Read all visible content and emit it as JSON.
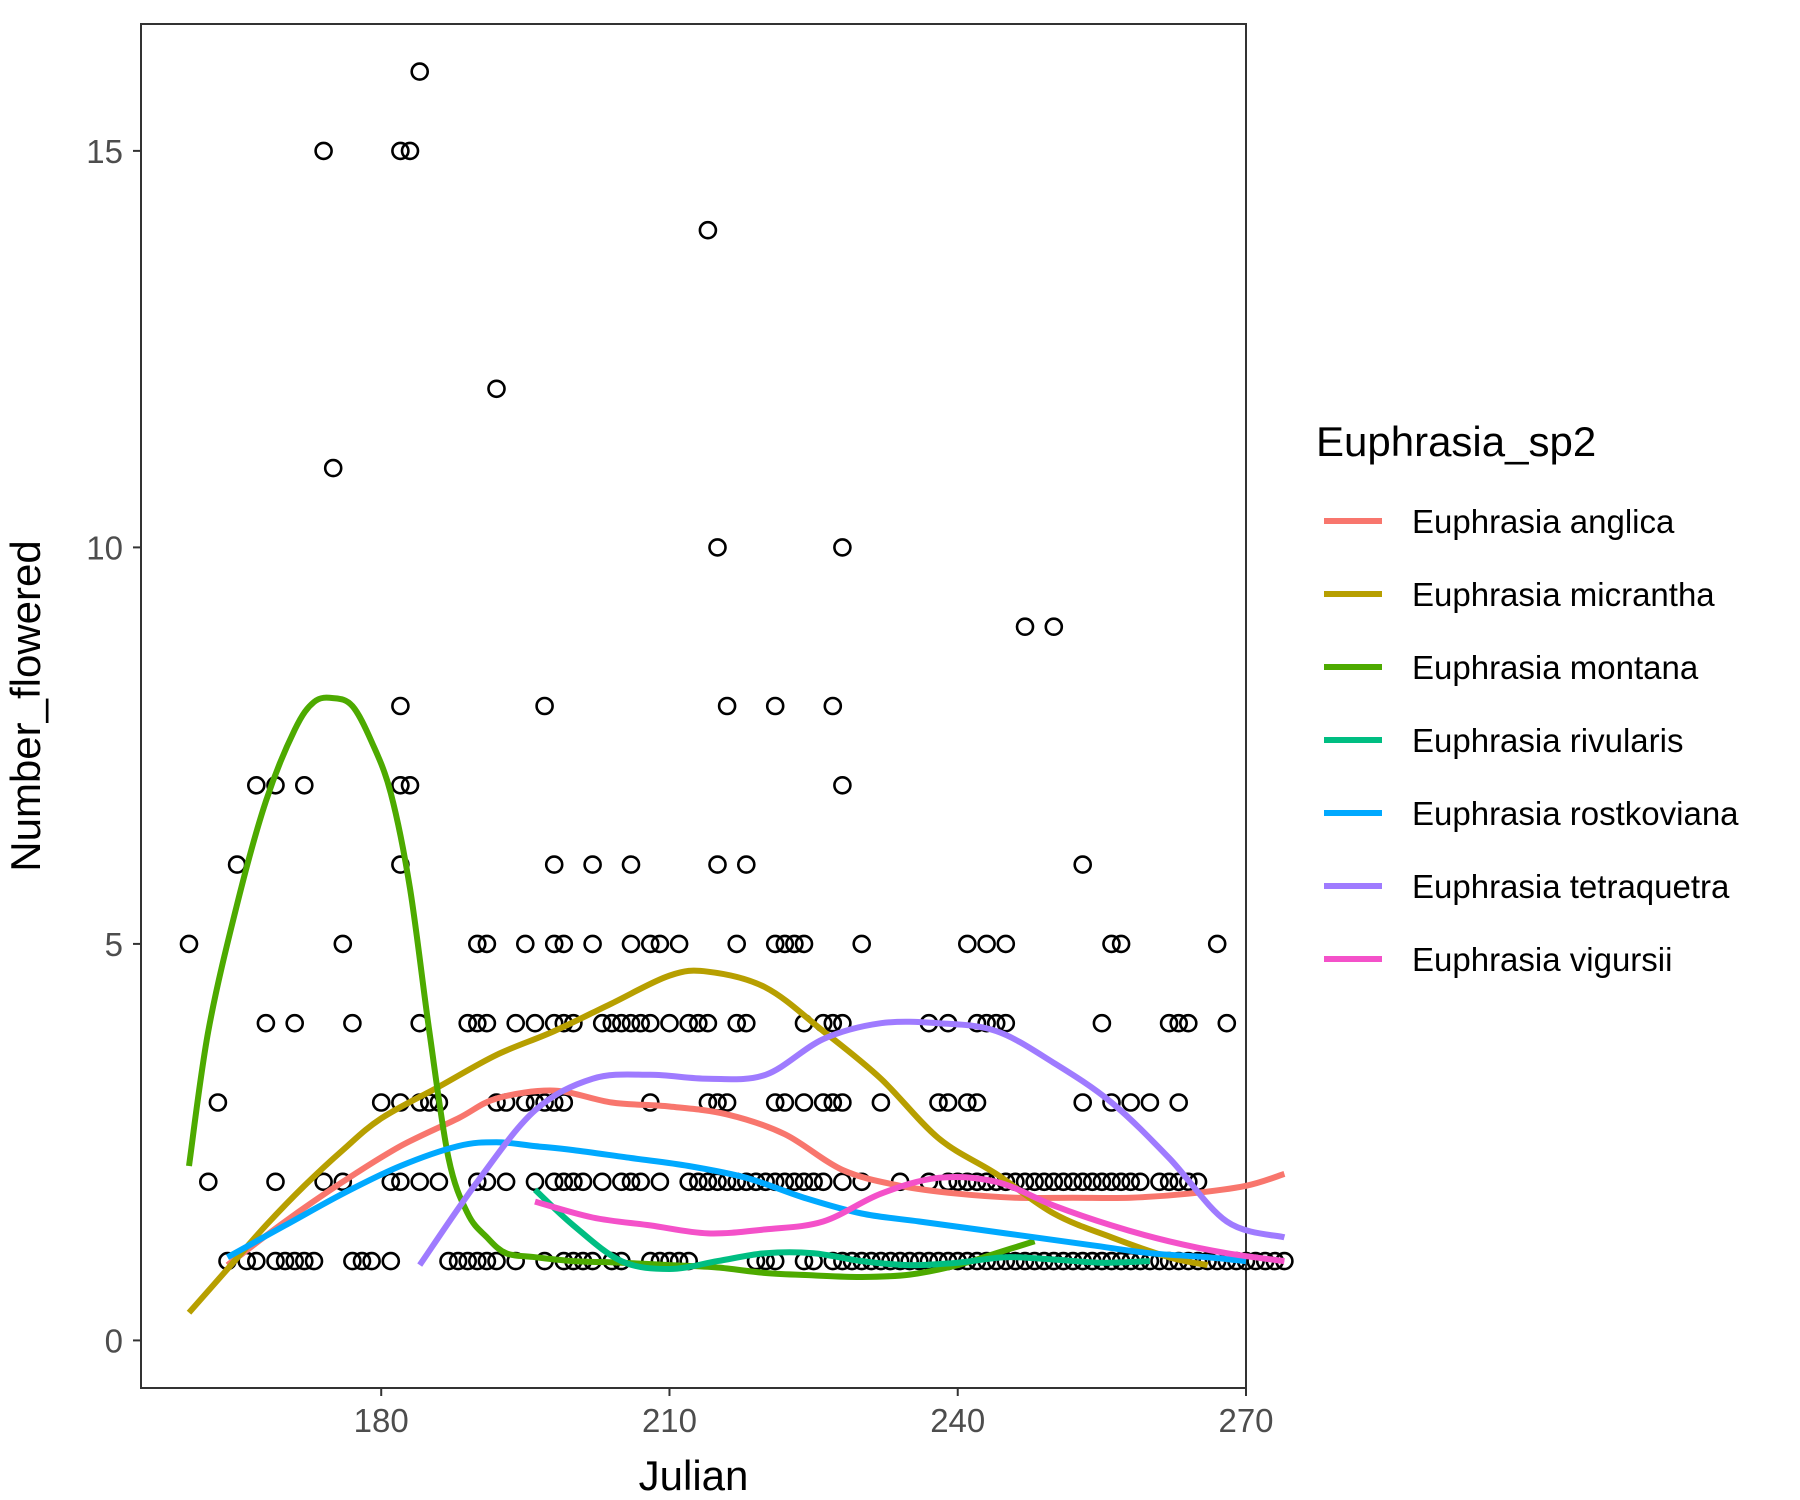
{
  "chart_data": {
    "type": "scatter",
    "title": "",
    "xlabel": "Julian",
    "ylabel": "Number_flowered",
    "xlim": [
      155,
      270
    ],
    "ylim": [
      -0.6,
      16.6
    ],
    "x_ticks": [
      180,
      210,
      240,
      270
    ],
    "y_ticks": [
      0,
      5,
      10,
      15
    ],
    "grid": false,
    "point_style": "open-circle",
    "point_color": "#000000",
    "legend": {
      "title": "Euphrasia_sp2",
      "position": "right"
    },
    "points": [
      [
        160,
        5
      ],
      [
        162,
        2
      ],
      [
        163,
        3
      ],
      [
        164,
        1
      ],
      [
        165,
        6
      ],
      [
        166,
        1
      ],
      [
        167,
        7
      ],
      [
        167,
        1
      ],
      [
        168,
        4
      ],
      [
        169,
        7
      ],
      [
        169,
        2
      ],
      [
        169,
        1
      ],
      [
        170,
        1
      ],
      [
        171,
        4
      ],
      [
        171,
        1
      ],
      [
        172,
        7
      ],
      [
        172,
        1
      ],
      [
        173,
        1
      ],
      [
        174,
        15
      ],
      [
        174,
        2
      ],
      [
        175,
        11
      ],
      [
        176,
        5
      ],
      [
        176,
        2
      ],
      [
        177,
        4
      ],
      [
        177,
        1
      ],
      [
        178,
        1
      ],
      [
        179,
        1
      ],
      [
        180,
        3
      ],
      [
        181,
        2
      ],
      [
        181,
        1
      ],
      [
        182,
        15
      ],
      [
        182,
        8
      ],
      [
        182,
        7
      ],
      [
        182,
        6
      ],
      [
        182,
        3
      ],
      [
        182,
        2
      ],
      [
        183,
        15
      ],
      [
        183,
        7
      ],
      [
        184,
        16
      ],
      [
        184,
        4
      ],
      [
        184,
        3
      ],
      [
        184,
        2
      ],
      [
        185,
        3
      ],
      [
        186,
        3
      ],
      [
        186,
        2
      ],
      [
        187,
        1
      ],
      [
        188,
        1
      ],
      [
        189,
        4
      ],
      [
        189,
        1
      ],
      [
        190,
        5
      ],
      [
        190,
        4
      ],
      [
        190,
        2
      ],
      [
        190,
        1
      ],
      [
        191,
        5
      ],
      [
        191,
        4
      ],
      [
        191,
        2
      ],
      [
        191,
        1
      ],
      [
        192,
        12
      ],
      [
        192,
        3
      ],
      [
        192,
        1
      ],
      [
        193,
        3
      ],
      [
        193,
        2
      ],
      [
        194,
        4
      ],
      [
        194,
        1
      ],
      [
        195,
        5
      ],
      [
        195,
        3
      ],
      [
        196,
        4
      ],
      [
        196,
        3
      ],
      [
        196,
        2
      ],
      [
        197,
        8
      ],
      [
        197,
        3
      ],
      [
        197,
        1
      ],
      [
        198,
        6
      ],
      [
        198,
        5
      ],
      [
        198,
        4
      ],
      [
        198,
        3
      ],
      [
        198,
        2
      ],
      [
        199,
        5
      ],
      [
        199,
        4
      ],
      [
        199,
        3
      ],
      [
        199,
        2
      ],
      [
        199,
        1
      ],
      [
        200,
        4
      ],
      [
        200,
        2
      ],
      [
        200,
        1
      ],
      [
        201,
        2
      ],
      [
        201,
        1
      ],
      [
        202,
        6
      ],
      [
        202,
        5
      ],
      [
        202,
        1
      ],
      [
        203,
        4
      ],
      [
        203,
        2
      ],
      [
        204,
        4
      ],
      [
        204,
        1
      ],
      [
        205,
        4
      ],
      [
        205,
        2
      ],
      [
        205,
        1
      ],
      [
        206,
        6
      ],
      [
        206,
        5
      ],
      [
        206,
        4
      ],
      [
        206,
        2
      ],
      [
        207,
        4
      ],
      [
        207,
        2
      ],
      [
        208,
        5
      ],
      [
        208,
        4
      ],
      [
        208,
        3
      ],
      [
        208,
        1
      ],
      [
        209,
        5
      ],
      [
        209,
        2
      ],
      [
        209,
        1
      ],
      [
        210,
        4
      ],
      [
        210,
        1
      ],
      [
        211,
        5
      ],
      [
        211,
        1
      ],
      [
        212,
        4
      ],
      [
        212,
        2
      ],
      [
        212,
        1
      ],
      [
        213,
        4
      ],
      [
        213,
        2
      ],
      [
        214,
        14
      ],
      [
        214,
        4
      ],
      [
        214,
        3
      ],
      [
        214,
        2
      ],
      [
        215,
        10
      ],
      [
        215,
        6
      ],
      [
        215,
        3
      ],
      [
        215,
        2
      ],
      [
        216,
        8
      ],
      [
        216,
        3
      ],
      [
        216,
        2
      ],
      [
        217,
        5
      ],
      [
        217,
        4
      ],
      [
        217,
        2
      ],
      [
        218,
        6
      ],
      [
        218,
        4
      ],
      [
        218,
        2
      ],
      [
        219,
        2
      ],
      [
        219,
        1
      ],
      [
        220,
        2
      ],
      [
        220,
        1
      ],
      [
        221,
        8
      ],
      [
        221,
        5
      ],
      [
        221,
        3
      ],
      [
        221,
        2
      ],
      [
        221,
        1
      ],
      [
        222,
        5
      ],
      [
        222,
        3
      ],
      [
        222,
        2
      ],
      [
        223,
        5
      ],
      [
        223,
        2
      ],
      [
        224,
        5
      ],
      [
        224,
        4
      ],
      [
        224,
        3
      ],
      [
        224,
        2
      ],
      [
        224,
        1
      ],
      [
        225,
        2
      ],
      [
        225,
        1
      ],
      [
        226,
        4
      ],
      [
        226,
        3
      ],
      [
        226,
        2
      ],
      [
        227,
        8
      ],
      [
        227,
        4
      ],
      [
        227,
        3
      ],
      [
        227,
        1
      ],
      [
        228,
        10
      ],
      [
        228,
        7
      ],
      [
        228,
        4
      ],
      [
        228,
        3
      ],
      [
        228,
        2
      ],
      [
        228,
        1
      ],
      [
        229,
        1
      ],
      [
        230,
        5
      ],
      [
        230,
        2
      ],
      [
        230,
        1
      ],
      [
        231,
        1
      ],
      [
        232,
        3
      ],
      [
        232,
        1
      ],
      [
        233,
        1
      ],
      [
        234,
        2
      ],
      [
        234,
        1
      ],
      [
        235,
        1
      ],
      [
        236,
        1
      ],
      [
        237,
        4
      ],
      [
        237,
        2
      ],
      [
        237,
        1
      ],
      [
        238,
        3
      ],
      [
        238,
        1
      ],
      [
        239,
        4
      ],
      [
        239,
        3
      ],
      [
        239,
        2
      ],
      [
        239,
        1
      ],
      [
        240,
        2
      ],
      [
        240,
        1
      ],
      [
        241,
        5
      ],
      [
        241,
        3
      ],
      [
        241,
        2
      ],
      [
        241,
        1
      ],
      [
        242,
        4
      ],
      [
        242,
        3
      ],
      [
        242,
        2
      ],
      [
        242,
        1
      ],
      [
        243,
        5
      ],
      [
        243,
        4
      ],
      [
        243,
        2
      ],
      [
        243,
        1
      ],
      [
        244,
        4
      ],
      [
        244,
        2
      ],
      [
        244,
        1
      ],
      [
        245,
        5
      ],
      [
        245,
        4
      ],
      [
        245,
        2
      ],
      [
        245,
        1
      ],
      [
        246,
        2
      ],
      [
        246,
        1
      ],
      [
        247,
        9
      ],
      [
        247,
        2
      ],
      [
        247,
        1
      ],
      [
        248,
        2
      ],
      [
        248,
        1
      ],
      [
        249,
        2
      ],
      [
        249,
        1
      ],
      [
        250,
        9
      ],
      [
        250,
        2
      ],
      [
        250,
        1
      ],
      [
        251,
        2
      ],
      [
        251,
        1
      ],
      [
        252,
        2
      ],
      [
        252,
        1
      ],
      [
        253,
        6
      ],
      [
        253,
        3
      ],
      [
        253,
        2
      ],
      [
        253,
        1
      ],
      [
        254,
        2
      ],
      [
        254,
        1
      ],
      [
        255,
        4
      ],
      [
        255,
        2
      ],
      [
        255,
        1
      ],
      [
        256,
        5
      ],
      [
        256,
        3
      ],
      [
        256,
        2
      ],
      [
        256,
        1
      ],
      [
        257,
        5
      ],
      [
        257,
        2
      ],
      [
        257,
        1
      ],
      [
        258,
        3
      ],
      [
        258,
        2
      ],
      [
        258,
        1
      ],
      [
        259,
        2
      ],
      [
        259,
        1
      ],
      [
        260,
        3
      ],
      [
        260,
        1
      ],
      [
        261,
        2
      ],
      [
        261,
        1
      ],
      [
        262,
        4
      ],
      [
        262,
        2
      ],
      [
        262,
        1
      ],
      [
        263,
        4
      ],
      [
        263,
        3
      ],
      [
        263,
        2
      ],
      [
        263,
        1
      ],
      [
        264,
        4
      ],
      [
        264,
        2
      ],
      [
        264,
        1
      ],
      [
        265,
        2
      ],
      [
        265,
        1
      ],
      [
        266,
        1
      ],
      [
        267,
        5
      ],
      [
        267,
        1
      ],
      [
        268,
        4
      ],
      [
        268,
        1
      ],
      [
        269,
        1
      ],
      [
        270,
        1
      ],
      [
        271,
        1
      ],
      [
        272,
        1
      ],
      [
        273,
        1
      ],
      [
        274,
        1
      ]
    ],
    "series": [
      {
        "name": "Euphrasia anglica",
        "color": "#F8766D",
        "x": [
          164,
          170,
          176,
          182,
          188,
          192,
          198,
          204,
          210,
          216,
          222,
          228,
          234,
          240,
          246,
          252,
          258,
          264,
          270,
          274
        ],
        "y": [
          0.95,
          1.5,
          2.0,
          2.45,
          2.8,
          3.05,
          3.15,
          3.0,
          2.95,
          2.85,
          2.6,
          2.15,
          1.95,
          1.85,
          1.8,
          1.8,
          1.8,
          1.85,
          1.95,
          2.1
        ]
      },
      {
        "name": "Euphrasia micrantha",
        "color": "#B79F00",
        "x": [
          160,
          164,
          168,
          172,
          176,
          180,
          186,
          192,
          198,
          204,
          210,
          214,
          220,
          226,
          232,
          238,
          244,
          250,
          256,
          262,
          266
        ],
        "y": [
          0.35,
          0.9,
          1.45,
          1.95,
          2.4,
          2.8,
          3.2,
          3.6,
          3.9,
          4.25,
          4.6,
          4.65,
          4.45,
          3.9,
          3.3,
          2.55,
          2.1,
          1.6,
          1.3,
          1.05,
          0.95
        ]
      },
      {
        "name": "Euphrasia montana",
        "color": "#4DAA00",
        "x": [
          160,
          162,
          165,
          168,
          171,
          173,
          175,
          177,
          179,
          181,
          183,
          185,
          187,
          189,
          191,
          193,
          196,
          200,
          205,
          210,
          215,
          220,
          225,
          230,
          235,
          240,
          244,
          248
        ],
        "y": [
          2.2,
          3.9,
          5.5,
          6.8,
          7.7,
          8.05,
          8.1,
          8.0,
          7.55,
          6.9,
          5.7,
          3.9,
          2.3,
          1.6,
          1.3,
          1.1,
          1.05,
          1.0,
          0.98,
          0.95,
          0.92,
          0.85,
          0.82,
          0.8,
          0.83,
          0.95,
          1.1,
          1.25
        ]
      },
      {
        "name": "Euphrasia rivularis",
        "color": "#00BE82",
        "x": [
          196,
          200,
          205,
          210,
          215,
          220,
          225,
          230,
          235,
          240,
          245,
          250,
          255,
          260
        ],
        "y": [
          1.9,
          1.45,
          1.0,
          0.9,
          1.0,
          1.1,
          1.1,
          1.0,
          0.95,
          0.98,
          1.05,
          1.02,
          0.98,
          1.0
        ]
      },
      {
        "name": "Euphrasia rostkoviana",
        "color": "#00A9FF",
        "x": [
          164,
          170,
          176,
          182,
          188,
          192,
          196,
          200,
          206,
          212,
          218,
          224,
          230,
          236,
          242,
          248,
          254,
          260,
          266,
          270
        ],
        "y": [
          1.05,
          1.45,
          1.85,
          2.2,
          2.45,
          2.5,
          2.45,
          2.4,
          2.3,
          2.2,
          2.05,
          1.8,
          1.6,
          1.5,
          1.4,
          1.3,
          1.2,
          1.1,
          1.05,
          1.0
        ]
      },
      {
        "name": "Euphrasia tetraquetra",
        "color": "#9F7BFF",
        "x": [
          184,
          190,
          196,
          202,
          208,
          214,
          220,
          226,
          232,
          238,
          244,
          250,
          256,
          262,
          268,
          274
        ],
        "y": [
          0.95,
          2.0,
          2.9,
          3.3,
          3.35,
          3.3,
          3.35,
          3.8,
          4.0,
          4.0,
          3.9,
          3.5,
          3.0,
          2.3,
          1.5,
          1.3
        ]
      },
      {
        "name": "Euphrasia vigursii",
        "color": "#F451C9",
        "x": [
          196,
          202,
          208,
          214,
          220,
          226,
          232,
          238,
          244,
          250,
          256,
          262,
          268,
          274
        ],
        "y": [
          1.75,
          1.55,
          1.45,
          1.35,
          1.4,
          1.5,
          1.85,
          2.05,
          2.0,
          1.7,
          1.45,
          1.25,
          1.1,
          1.0
        ]
      }
    ]
  }
}
